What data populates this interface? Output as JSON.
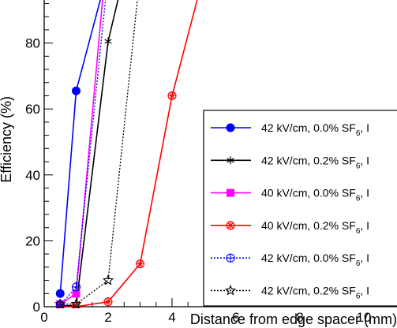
{
  "chart_data": {
    "type": "line",
    "xlabel": "Distance from edge spacer (mm)",
    "ylabel": "Efficiency (%)",
    "xlim": [
      0,
      12.5
    ],
    "ylim": [
      0,
      100
    ],
    "x_ticks": [
      0,
      2,
      4,
      6,
      8,
      10
    ],
    "y_ticks": [
      0,
      20,
      40,
      60,
      80
    ],
    "grid": false,
    "legend_position": "right",
    "series": [
      {
        "name": "42 kV/cm, 0.0% SF6, I",
        "label_parts": [
          "42 kV/cm, 0.0% SF",
          "6",
          ", I"
        ],
        "color": "#0000ff",
        "dash": "solid",
        "marker": "filled-circle",
        "x": [
          0.5,
          1.0,
          2.0
        ],
        "y": [
          4,
          65.5,
          102
        ]
      },
      {
        "name": "42 kV/cm, 0.2% SF6, I",
        "label_parts": [
          "42 kV/cm, 0.2% SF",
          "6",
          ", I"
        ],
        "color": "#000000",
        "dash": "solid",
        "marker": "star",
        "x": [
          0.5,
          1.0,
          2.0,
          2.5
        ],
        "y": [
          0.3,
          0.3,
          80.5,
          101
        ]
      },
      {
        "name": "40 kV/cm, 0.0% SF6, I",
        "label_parts": [
          "40 kV/cm, 0.0% SF",
          "6",
          ", I"
        ],
        "color": "#ff00ff",
        "dash": "solid",
        "marker": "filled-square",
        "x": [
          0.5,
          1.0,
          1.9
        ],
        "y": [
          0.8,
          4,
          101
        ]
      },
      {
        "name": "40 kV/cm, 0.2% SF6, I",
        "label_parts": [
          "40 kV/cm, 0.2% SF",
          "6",
          ", I"
        ],
        "color": "#ff0000",
        "dash": "solid",
        "marker": "circle-star",
        "x": [
          0.5,
          1.0,
          2.0,
          3.0,
          4.0,
          5.0
        ],
        "y": [
          0,
          0,
          1.5,
          13,
          64,
          101
        ]
      },
      {
        "name": "42 kV/cm, 0.0% SF6, I",
        "label_parts": [
          "42 kV/cm, 0.0% SF",
          "6",
          ", I"
        ],
        "color": "#0000ff",
        "dash": "dotted",
        "marker": "open-circle-plus",
        "x": [
          0.5,
          1.0,
          2.0
        ],
        "y": [
          0.5,
          6,
          101
        ]
      },
      {
        "name": "42 kV/cm, 0.2% SF6, I",
        "label_parts": [
          "42 kV/cm, 0.2% SF",
          "6",
          ", I"
        ],
        "color": "#000000",
        "dash": "dotted",
        "marker": "open-star",
        "x": [
          0.5,
          1.0,
          2.0,
          3.0
        ],
        "y": [
          0.8,
          0.8,
          8,
          101
        ]
      }
    ]
  }
}
